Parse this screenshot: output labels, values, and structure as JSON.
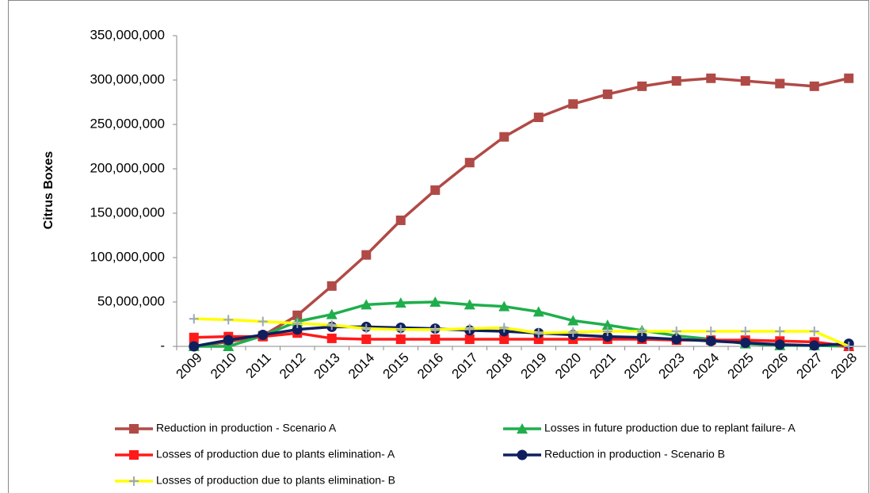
{
  "chart_data": {
    "type": "line",
    "y_label": "Citrus Boxes",
    "categories": [
      "2009",
      "2010",
      "2011",
      "2012",
      "2013",
      "2014",
      "2015",
      "2016",
      "2017",
      "2018",
      "2019",
      "2020",
      "2021",
      "2022",
      "2023",
      "2024",
      "2025",
      "2026",
      "2027",
      "2028"
    ],
    "ylim": [
      0,
      350000000
    ],
    "yticks": [
      {
        "value": 0,
        "label": "-"
      },
      {
        "value": 50000000,
        "label": "50,000,000"
      },
      {
        "value": 100000000,
        "label": "100,000,000"
      },
      {
        "value": 150000000,
        "label": "150,000,000"
      },
      {
        "value": 200000000,
        "label": "200,000,000"
      },
      {
        "value": 250000000,
        "label": "250,000,000"
      },
      {
        "value": 300000000,
        "label": "300,000,000"
      },
      {
        "value": 350000000,
        "label": "350,000,000"
      }
    ],
    "series": [
      {
        "name": "Reduction in production - Scenario A",
        "color": "#b04a46",
        "marker": "square",
        "values": [
          0,
          5000000,
          12000000,
          35000000,
          68000000,
          103000000,
          142000000,
          176000000,
          207000000,
          236000000,
          258000000,
          273000000,
          284000000,
          293000000,
          299000000,
          302000000,
          299000000,
          296000000,
          293000000,
          302000000
        ]
      },
      {
        "name": "Losses in future production due to replant failure- A",
        "color": "#1fae4c",
        "marker": "triangle",
        "values": [
          0,
          0,
          12000000,
          28000000,
          36000000,
          47000000,
          49000000,
          50000000,
          47000000,
          45000000,
          39000000,
          29000000,
          24000000,
          18000000,
          12000000,
          8000000,
          3000000,
          1000000,
          1000000,
          0
        ]
      },
      {
        "name": "Losses of production due to plants elimination- A",
        "color": "#ff1a1a",
        "marker": "square",
        "values": [
          10000000,
          11000000,
          11000000,
          15000000,
          9000000,
          8000000,
          8000000,
          8000000,
          8000000,
          8000000,
          8000000,
          8000000,
          8000000,
          8000000,
          7000000,
          7000000,
          7000000,
          6000000,
          5000000,
          0
        ]
      },
      {
        "name": "Reduction in production - Scenario B",
        "color": "#10205e",
        "marker": "circle",
        "values": [
          0,
          7000000,
          13000000,
          19000000,
          22000000,
          22000000,
          21000000,
          20000000,
          18000000,
          17000000,
          15000000,
          13000000,
          11000000,
          10000000,
          8000000,
          6000000,
          4000000,
          2000000,
          1000000,
          3000000
        ]
      },
      {
        "name": "Losses of production due to plants elimination- B",
        "color": "#ffff00",
        "marker": "plus",
        "values": [
          31000000,
          30000000,
          28000000,
          26000000,
          24000000,
          20000000,
          19000000,
          19000000,
          20000000,
          21000000,
          15000000,
          16000000,
          17000000,
          17000000,
          17000000,
          17000000,
          17000000,
          17000000,
          17000000,
          0
        ]
      }
    ]
  }
}
